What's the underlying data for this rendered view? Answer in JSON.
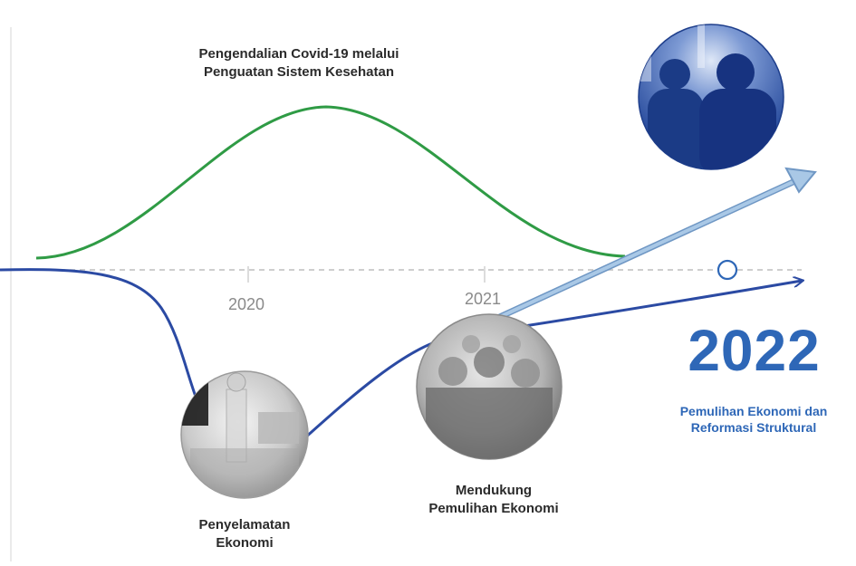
{
  "timeline": {
    "year_2020": "2020",
    "year_2021": "2021",
    "year_2022": "2022"
  },
  "labels": {
    "covid_line1": "Pengendalian Covid-19 melalui",
    "covid_line2": "Penguatan Sistem Kesehatan",
    "rescue_line1": "Penyelamatan",
    "rescue_line2": "Ekonomi",
    "support_line1": "Mendukung",
    "support_line2": "Pemulihan Ekonomi",
    "reform_line1": "Pemulihan Ekonomi dan",
    "reform_line2": "Reformasi Struktural"
  },
  "colors": {
    "health_curve": "#2f9b45",
    "economy_curve": "#2b4aa3",
    "arrow_light": "#8fb6db",
    "accent_blue": "#2e67b7"
  }
}
